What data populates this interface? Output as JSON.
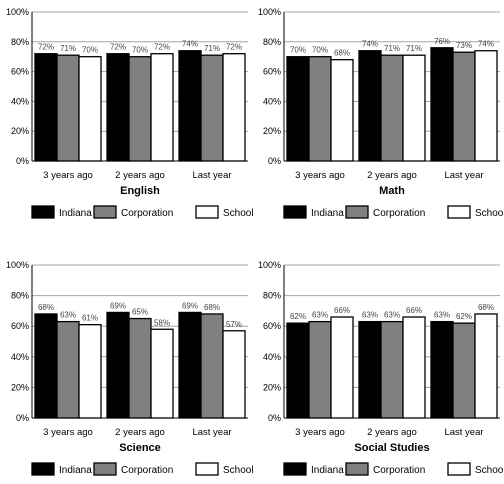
{
  "colors": {
    "Indiana": "#000000",
    "Corporation": "#808080",
    "School": "#ffffff",
    "grid": "#a6a6a6"
  },
  "chart_data": [
    {
      "type": "bar",
      "title": "English",
      "categories": [
        "3 years ago",
        "2 years ago",
        "Last year"
      ],
      "series": [
        {
          "name": "Indiana",
          "values": [
            72,
            72,
            74
          ],
          "labels": [
            "72%",
            "72%",
            "74%"
          ]
        },
        {
          "name": "Corporation",
          "values": [
            71,
            70,
            71
          ],
          "labels": [
            "71%",
            "70%",
            "71%"
          ]
        },
        {
          "name": "School",
          "values": [
            70,
            72,
            72
          ],
          "labels": [
            "70%",
            "72%",
            "72%"
          ]
        }
      ],
      "yticks": [
        "0%",
        "20%",
        "40%",
        "60%",
        "80%",
        "100%"
      ],
      "ylim": [
        0,
        100
      ],
      "grid": true,
      "legend_position": "bottom"
    },
    {
      "type": "bar",
      "title": "Math",
      "categories": [
        "3 years ago",
        "2 years ago",
        "Last year"
      ],
      "series": [
        {
          "name": "Indiana",
          "values": [
            70,
            74,
            76
          ],
          "labels": [
            "70%",
            "74%",
            "76%"
          ]
        },
        {
          "name": "Corporation",
          "values": [
            70,
            71,
            73
          ],
          "labels": [
            "70%",
            "71%",
            "73%"
          ]
        },
        {
          "name": "School",
          "values": [
            68,
            71,
            74
          ],
          "labels": [
            "68%",
            "71%",
            "74%"
          ]
        }
      ],
      "yticks": [
        "0%",
        "20%",
        "40%",
        "60%",
        "80%",
        "100%"
      ],
      "ylim": [
        0,
        100
      ],
      "grid": true,
      "legend_position": "bottom"
    },
    {
      "type": "bar",
      "title": "Science",
      "categories": [
        "3 years ago",
        "2 years ago",
        "Last year"
      ],
      "series": [
        {
          "name": "Indiana",
          "values": [
            68,
            69,
            69
          ],
          "labels": [
            "68%",
            "69%",
            "69%"
          ]
        },
        {
          "name": "Corporation",
          "values": [
            63,
            65,
            68
          ],
          "labels": [
            "63%",
            "65%",
            "68%"
          ]
        },
        {
          "name": "School",
          "values": [
            61,
            58,
            57
          ],
          "labels": [
            "61%",
            "58%",
            "57%"
          ]
        }
      ],
      "yticks": [
        "0%",
        "20%",
        "40%",
        "60%",
        "80%",
        "100%"
      ],
      "ylim": [
        0,
        100
      ],
      "grid": true,
      "legend_position": "bottom"
    },
    {
      "type": "bar",
      "title": "Social Studies",
      "categories": [
        "3 years ago",
        "2 years ago",
        "Last year"
      ],
      "series": [
        {
          "name": "Indiana",
          "values": [
            62,
            63,
            63
          ],
          "labels": [
            "62%",
            "63%",
            "63%"
          ]
        },
        {
          "name": "Corporation",
          "values": [
            63,
            63,
            62
          ],
          "labels": [
            "63%",
            "63%",
            "62%"
          ]
        },
        {
          "name": "School",
          "values": [
            66,
            66,
            68
          ],
          "labels": [
            "66%",
            "66%",
            "68%"
          ]
        }
      ],
      "yticks": [
        "0%",
        "20%",
        "40%",
        "60%",
        "80%",
        "100%"
      ],
      "ylim": [
        0,
        100
      ],
      "grid": true,
      "legend_position": "bottom"
    }
  ]
}
